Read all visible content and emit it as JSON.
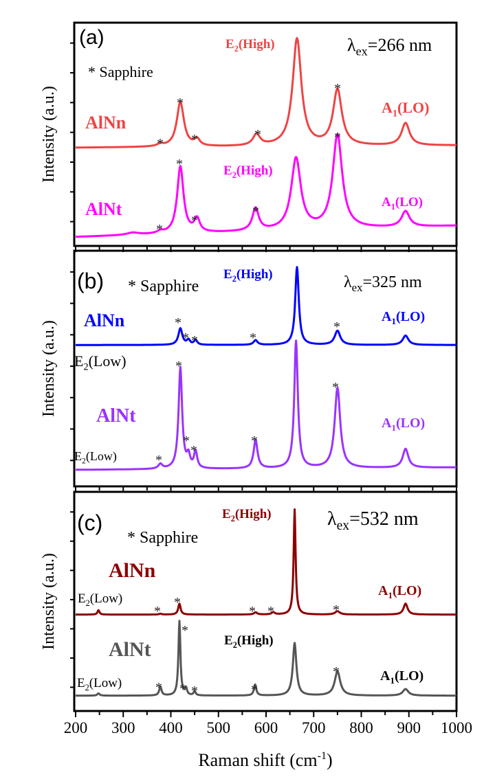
{
  "chart_data": [
    {
      "type": "line",
      "panel_label": "(a)",
      "excitation": {
        "symbol": "λ",
        "sub": "ex",
        "rest": "=266 nm"
      },
      "sapphire_note": "* Sapphire",
      "ylabel": "Intensity (a.u.)",
      "xlim": [
        200,
        1000
      ],
      "series": [
        {
          "name": "AlNn",
          "color": "#ee4444",
          "baseline": 0.44,
          "slope": 0.01,
          "peaks": [
            [
              378,
              0.01,
              15
            ],
            [
              420,
              0.2,
              18
            ],
            [
              455,
              0.03,
              14
            ],
            [
              580,
              0.05,
              18
            ],
            [
              665,
              0.48,
              22
            ],
            [
              750,
              0.25,
              22
            ],
            [
              893,
              0.1,
              20
            ]
          ]
        },
        {
          "name": "AlNt",
          "color": "#ff00ff",
          "baseline": 0.04,
          "slope": 0.05,
          "peaks": [
            [
              320,
              0.01,
              30
            ],
            [
              378,
              0.01,
              15
            ],
            [
              420,
              0.3,
              16
            ],
            [
              455,
              0.06,
              14
            ],
            [
              578,
              0.1,
              16
            ],
            [
              663,
              0.32,
              24
            ],
            [
              750,
              0.42,
              24
            ],
            [
              893,
              0.07,
              20
            ]
          ]
        }
      ],
      "mode_labels": [
        {
          "base": "E",
          "sub": "2",
          "rest": "(High)",
          "color": "#ee4444"
        },
        {
          "base": "A",
          "sub": "1",
          "rest": "(LO)",
          "color": "#ee4444"
        },
        {
          "base": "E",
          "sub": "2",
          "rest": "(High)",
          "color": "#ff00ff"
        },
        {
          "base": "A",
          "sub": "1",
          "rest": "(LO)",
          "color": "#ff00ff"
        }
      ],
      "sapphire_marker": "*"
    },
    {
      "type": "line",
      "panel_label": "(b)",
      "excitation": {
        "symbol": "λ",
        "sub": "ex",
        "rest": "=325 nm"
      },
      "sapphire_note": "* Sapphire",
      "ylabel": "Intensity (a.u.)",
      "xlim": [
        200,
        1000
      ],
      "series": [
        {
          "name": "AlNn",
          "color": "#0000ff",
          "baseline": 0.6,
          "slope": 0.0,
          "peaks": [
            [
              420,
              0.07,
              10
            ],
            [
              437,
              0.02,
              8
            ],
            [
              452,
              0.02,
              8
            ],
            [
              578,
              0.02,
              10
            ],
            [
              665,
              0.33,
              9
            ],
            [
              750,
              0.06,
              14
            ],
            [
              893,
              0.04,
              14
            ]
          ]
        },
        {
          "name": "AlNt",
          "color": "#9933ff",
          "baseline": 0.07,
          "slope": 0.01,
          "peaks": [
            [
              378,
              0.02,
              10
            ],
            [
              420,
              0.43,
              9
            ],
            [
              437,
              0.05,
              8
            ],
            [
              452,
              0.07,
              8
            ],
            [
              578,
              0.12,
              10
            ],
            [
              663,
              0.54,
              9
            ],
            [
              750,
              0.34,
              14
            ],
            [
              893,
              0.08,
              14
            ]
          ]
        }
      ],
      "mode_labels": [
        {
          "base": "E",
          "sub": "2",
          "rest": "(High)",
          "color": "#0000ff"
        },
        {
          "base": "A",
          "sub": "1",
          "rest": "(LO)",
          "color": "#0000ff"
        },
        {
          "base": "E",
          "sub": "2",
          "rest": "(Low)",
          "color": "#000000"
        },
        {
          "base": "A",
          "sub": "1",
          "rest": "(LO)",
          "color": "#9933ff"
        },
        {
          "base": "E",
          "sub": "2",
          "rest": "(Low)",
          "color": "#000000"
        }
      ],
      "sapphire_marker": "*"
    },
    {
      "type": "line",
      "panel_label": "(c)",
      "excitation": {
        "symbol": "λ",
        "sub": "ex",
        "rest": "=532 nm"
      },
      "sapphire_note": "* Sapphire",
      "ylabel": "Intensity (a.u.)",
      "xlabel": {
        "text": "Raman shift (cm",
        "sup": "-1",
        "close": ")"
      },
      "xlim": [
        200,
        1000
      ],
      "xticks": [
        200,
        300,
        400,
        500,
        600,
        700,
        800,
        900,
        1000
      ],
      "series": [
        {
          "name": "AlNn",
          "color": "#8b0000",
          "baseline": 0.44,
          "slope": 0.0,
          "peaks": [
            [
              248,
              0.02,
              5
            ],
            [
              378,
              0.004,
              6
            ],
            [
              418,
              0.05,
              6
            ],
            [
              578,
              0.01,
              8
            ],
            [
              615,
              0.01,
              8
            ],
            [
              660,
              0.48,
              5
            ],
            [
              750,
              0.015,
              12
            ],
            [
              893,
              0.05,
              10
            ]
          ]
        },
        {
          "name": "AlNt",
          "color": "#555555",
          "baseline": 0.07,
          "slope": 0.0,
          "peaks": [
            [
              248,
              0.01,
              6
            ],
            [
              378,
              0.04,
              6
            ],
            [
              418,
              0.34,
              5
            ],
            [
              432,
              0.03,
              5
            ],
            [
              450,
              0.02,
              5
            ],
            [
              577,
              0.05,
              6
            ],
            [
              660,
              0.24,
              9
            ],
            [
              750,
              0.11,
              14
            ],
            [
              893,
              0.03,
              14
            ]
          ]
        }
      ],
      "mode_labels": [
        {
          "base": "E",
          "sub": "2",
          "rest": "(High)",
          "color": "#8b0000"
        },
        {
          "base": "A",
          "sub": "1",
          "rest": "(LO)",
          "color": "#8b0000"
        },
        {
          "base": "E",
          "sub": "2",
          "rest": "(Low)",
          "color": "#000000"
        },
        {
          "base": "E",
          "sub": "2",
          "rest": "(High)",
          "color": "#000000"
        },
        {
          "base": "A",
          "sub": "1",
          "rest": "(LO)",
          "color": "#000000"
        },
        {
          "base": "E",
          "sub": "2",
          "rest": "(Low)",
          "color": "#000000"
        }
      ],
      "sapphire_marker": "*"
    }
  ]
}
